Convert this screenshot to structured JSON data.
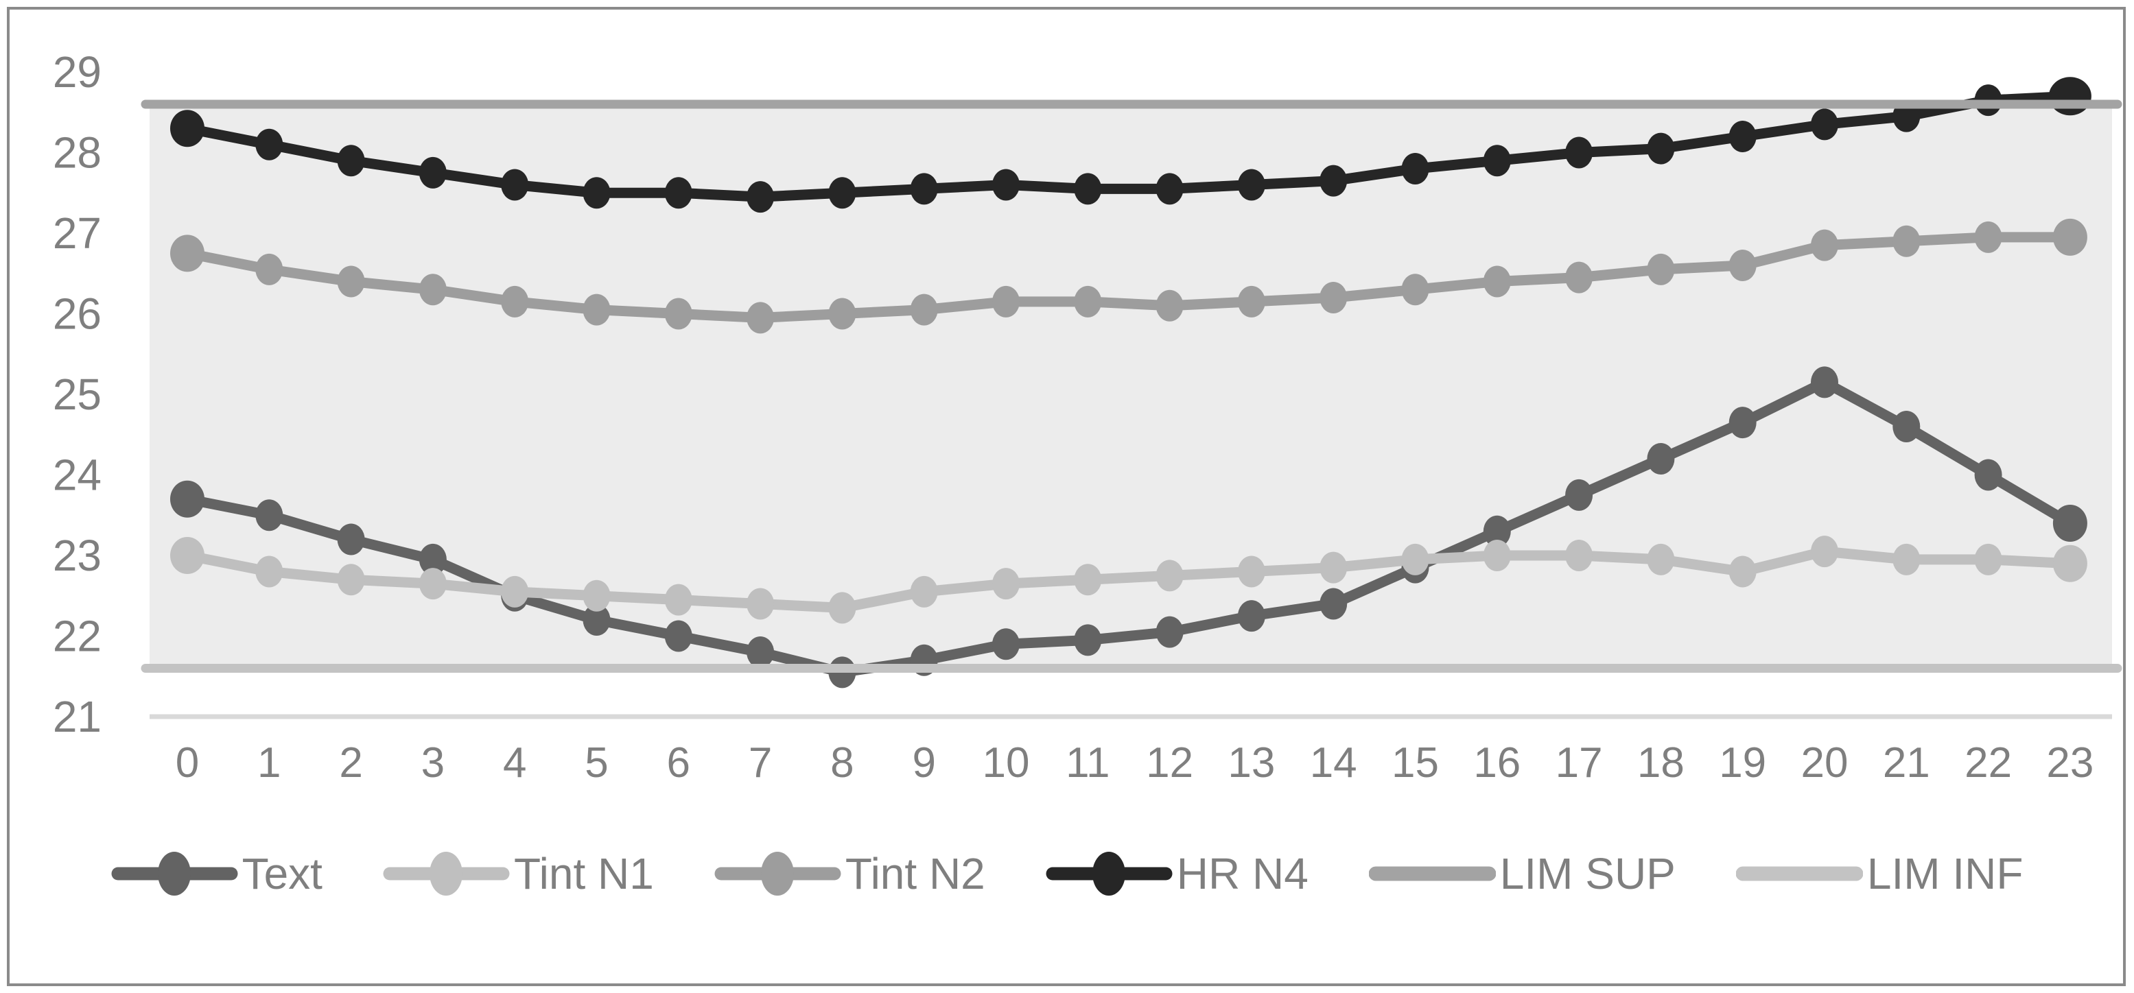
{
  "chart_data": {
    "type": "line",
    "title": "",
    "xlabel": "",
    "ylabel": "",
    "x": [
      0,
      1,
      2,
      3,
      4,
      5,
      6,
      7,
      8,
      9,
      10,
      11,
      12,
      13,
      14,
      15,
      16,
      17,
      18,
      19,
      20,
      21,
      22,
      23
    ],
    "series": [
      {
        "name": "Text",
        "color": "#636363",
        "marker": true,
        "values": [
          23.7,
          23.5,
          23.2,
          22.95,
          22.5,
          22.2,
          22.0,
          21.8,
          21.55,
          21.7,
          21.9,
          21.95,
          22.05,
          22.25,
          22.4,
          22.85,
          23.3,
          23.75,
          24.2,
          24.65,
          25.15,
          24.6,
          24.0,
          23.4
        ]
      },
      {
        "name": "Tint N1",
        "color": "#bfbfbf",
        "marker": true,
        "values": [
          23.0,
          22.8,
          22.7,
          22.65,
          22.55,
          22.5,
          22.45,
          22.4,
          22.35,
          22.55,
          22.65,
          22.7,
          22.75,
          22.8,
          22.85,
          22.95,
          23.0,
          23.0,
          22.95,
          22.8,
          23.05,
          22.95,
          22.95,
          22.9
        ]
      },
      {
        "name": "Tint N2",
        "color": "#9d9d9d",
        "marker": true,
        "values": [
          26.75,
          26.55,
          26.4,
          26.3,
          26.15,
          26.05,
          26.0,
          25.95,
          26.0,
          26.05,
          26.15,
          26.15,
          26.1,
          26.15,
          26.2,
          26.3,
          26.4,
          26.45,
          26.55,
          26.6,
          26.85,
          26.9,
          26.95,
          26.95
        ]
      },
      {
        "name": "HR N4",
        "color": "#262626",
        "marker": true,
        "values": [
          28.3,
          28.1,
          27.9,
          27.75,
          27.6,
          27.5,
          27.5,
          27.45,
          27.5,
          27.55,
          27.6,
          27.55,
          27.55,
          27.6,
          27.65,
          27.8,
          27.9,
          28.0,
          28.05,
          28.2,
          28.35,
          28.45,
          28.65,
          28.7
        ]
      },
      {
        "name": "LIM SUP",
        "color": "#a3a3a3",
        "marker": false,
        "constant": 28.6
      },
      {
        "name": "LIM INF",
        "color": "#c3c3c3",
        "marker": false,
        "constant": 21.6
      }
    ],
    "ylim": [
      21,
      29
    ],
    "yticks": [
      21,
      22,
      23,
      24,
      25,
      26,
      27,
      28,
      29
    ],
    "xticks": [
      0,
      1,
      2,
      3,
      4,
      5,
      6,
      7,
      8,
      9,
      10,
      11,
      12,
      13,
      14,
      15,
      16,
      17,
      18,
      19,
      20,
      21,
      22,
      23
    ],
    "band": {
      "top": 28.6,
      "bottom": 21.6,
      "fill": "#ececec"
    },
    "baseline_gridline_y": 21,
    "grid": "bottom-line-only",
    "legend_position": "bottom"
  },
  "style_colors": {
    "axis_text": "#7f7f7f",
    "legend_text": "#7f7f7f",
    "gridline": "#d9d9d9",
    "frame_border": "#8a8a8a",
    "background": "#ffffff"
  }
}
